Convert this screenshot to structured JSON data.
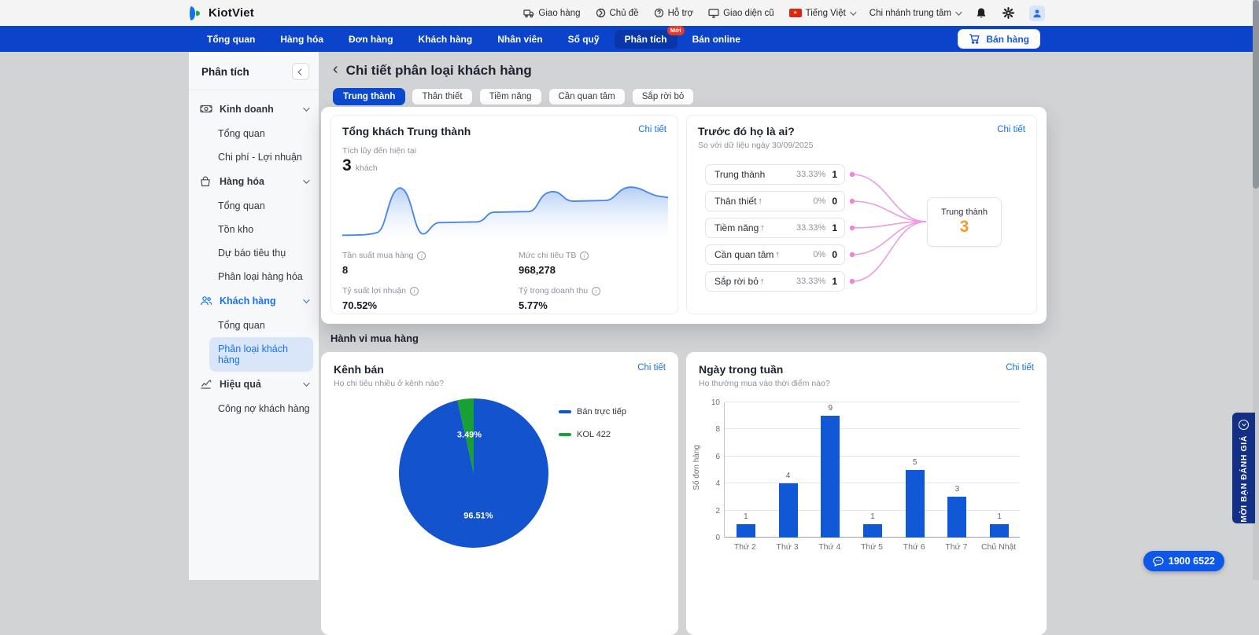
{
  "brand": {
    "name": "KiotViet"
  },
  "header": {
    "links": [
      {
        "label": "Giao hàng",
        "icon": "delivery-icon"
      },
      {
        "label": "Chủ đề",
        "icon": "theme-icon"
      },
      {
        "label": "Hỗ trợ",
        "icon": "support-icon"
      },
      {
        "label": "Giao diện cũ",
        "icon": "monitor-icon"
      }
    ],
    "language": "Tiếng Việt",
    "branch": "Chi nhánh trung tâm"
  },
  "nav": {
    "items": [
      {
        "label": "Tổng quan"
      },
      {
        "label": "Hàng hóa"
      },
      {
        "label": "Đơn hàng"
      },
      {
        "label": "Khách hàng"
      },
      {
        "label": "Nhân viên"
      },
      {
        "label": "Sổ quỹ"
      },
      {
        "label": "Phân tích",
        "active": true,
        "badge": "Mới"
      },
      {
        "label": "Bán online"
      }
    ],
    "sell_button": "Bán hàng"
  },
  "sidebar": {
    "title": "Phân tích",
    "sections": [
      {
        "label": "Kinh doanh",
        "icon": "business-icon",
        "active": false,
        "children": [
          {
            "label": "Tổng quan"
          },
          {
            "label": "Chi phí - Lợi nhuận"
          }
        ]
      },
      {
        "label": "Hàng hóa",
        "icon": "goods-icon",
        "active": false,
        "children": [
          {
            "label": "Tổng quan"
          },
          {
            "label": "Tồn kho"
          },
          {
            "label": "Dự báo tiêu thụ"
          },
          {
            "label": "Phân loại hàng hóa"
          }
        ]
      },
      {
        "label": "Khách hàng",
        "icon": "customers-icon",
        "active": true,
        "children": [
          {
            "label": "Tổng quan"
          },
          {
            "label": "Phân loại khách hàng",
            "active": true
          }
        ]
      },
      {
        "label": "Hiệu quả",
        "icon": "efficiency-icon",
        "active": false,
        "children": [
          {
            "label": "Công nợ khách hàng"
          }
        ]
      }
    ]
  },
  "page": {
    "title": "Chi tiết phân loại khách hàng",
    "tabs": [
      {
        "label": "Trung thành",
        "active": true
      },
      {
        "label": "Thân thiết"
      },
      {
        "label": "Tiềm năng"
      },
      {
        "label": "Cần quan tâm"
      },
      {
        "label": "Sắp rời bỏ"
      }
    ]
  },
  "loyal_card": {
    "title": "Tổng khách Trung thành",
    "detail_link": "Chi tiết",
    "accum_label": "Tích lũy đến hiện tại",
    "accum_value": "3",
    "accum_unit": "khách",
    "metrics": [
      {
        "label": "Tần suất mua hàng",
        "value": "8"
      },
      {
        "label": "Mức chi tiêu TB",
        "value": "968,278"
      },
      {
        "label": "Tỷ suất lợi nhuận",
        "value": "70.52%"
      },
      {
        "label": "Tỷ trọng doanh thu",
        "value": "5.77%"
      }
    ]
  },
  "origin_card": {
    "title": "Trước đó họ là ai?",
    "detail_link": "Chi tiết",
    "subtitle": "So với dữ liệu ngày 30/09/2025",
    "rows": [
      {
        "label": "Trung thành",
        "pct": "33.33%",
        "count": "1",
        "up": false
      },
      {
        "label": "Thân thiết",
        "pct": "0%",
        "count": "0",
        "up": true
      },
      {
        "label": "Tiềm năng",
        "pct": "33.33%",
        "count": "1",
        "up": true
      },
      {
        "label": "Cần quan tâm",
        "pct": "0%",
        "count": "0",
        "up": true
      },
      {
        "label": "Sắp rời bỏ",
        "pct": "33.33%",
        "count": "1",
        "up": true
      }
    ],
    "node": {
      "label": "Trung thành",
      "value": "3"
    }
  },
  "behavior": {
    "title": "Hành vi mua hàng",
    "channel_card": {
      "title": "Kênh bán",
      "subtitle": "Họ chi tiêu nhiều ở kênh nào?",
      "detail_link": "Chi tiết"
    },
    "weekday_card": {
      "title": "Ngày trong tuần",
      "subtitle": "Họ thường mua vào thời điểm nào?",
      "detail_link": "Chi tiết"
    }
  },
  "chart_data": [
    {
      "id": "loyal-trend",
      "type": "area",
      "title": "Tổng khách Trung thành (tích lũy)",
      "x": "time (unlabeled)",
      "ylabel": "",
      "xlabel": "",
      "series": [
        {
          "name": "khách",
          "values": [
            0,
            0,
            3.2,
            0.2,
            1,
            1,
            1.6,
            1.6,
            3.1,
            2.5,
            2.5,
            3.4,
            3.3
          ]
        }
      ],
      "note": "unlabeled sparkline, values estimated from pixel heights"
    },
    {
      "id": "sales-channel",
      "type": "pie",
      "title": "Kênh bán",
      "labels": [
        "Bán trực tiếp",
        "KOL 422"
      ],
      "values": [
        96.51,
        3.49
      ],
      "value_labels": [
        "96.51%",
        "3.49%"
      ],
      "colors": [
        "#1353ce",
        "#18a035"
      ],
      "legend_position": "right"
    },
    {
      "id": "weekday-orders",
      "type": "bar",
      "title": "Ngày trong tuần",
      "categories": [
        "Thứ 2",
        "Thứ 3",
        "Thứ 4",
        "Thứ 5",
        "Thứ 6",
        "Thứ 7",
        "Chủ Nhật"
      ],
      "values": [
        1,
        4,
        9,
        1,
        5,
        3,
        1
      ],
      "xlabel": "",
      "ylabel": "Số đơn hàng",
      "ylim": [
        0,
        10
      ],
      "yticks": [
        0,
        2,
        4,
        6,
        8,
        10
      ],
      "bar_color": "#1158d6",
      "grid": true
    }
  ],
  "widgets": {
    "review_tab": "MỜI BẠN ĐÁNH GIÁ",
    "hotline": "1900 6522"
  }
}
